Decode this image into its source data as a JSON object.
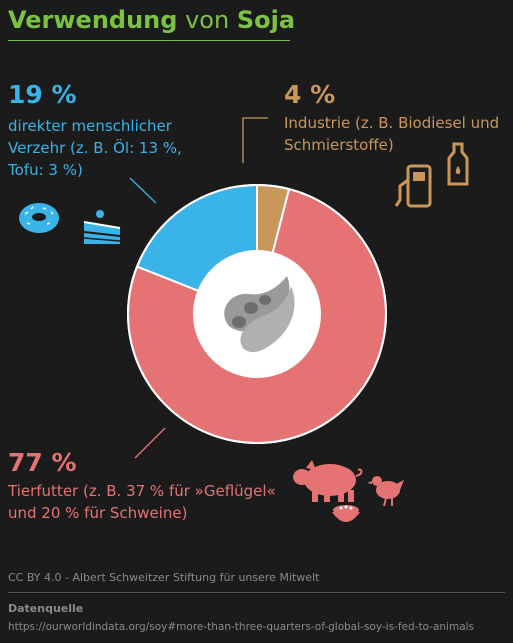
{
  "title": {
    "part1": "Verwendung",
    "part2": " von ",
    "part3": "Soja"
  },
  "colors": {
    "title_green": "#7cc242",
    "title_white": "#ffffff",
    "human": "#39b3e8",
    "industry": "#c9975a",
    "feed": "#e57373",
    "hole": "#ffffff",
    "bean": "#9a9a9a"
  },
  "chart_data": {
    "type": "pie",
    "donut": true,
    "slices": [
      {
        "name": "Industrie",
        "value": 4,
        "color": "#c9975a"
      },
      {
        "name": "Tierfutter",
        "value": 77,
        "color": "#e57373"
      },
      {
        "name": "direkter menschlicher Verzehr",
        "value": 19,
        "color": "#39b3e8"
      }
    ],
    "annotations": {
      "human": {
        "pct": "19 %",
        "lines": [
          "direkter menschlicher",
          "Verzehr (z. B. Öl: 13 %,",
          "Tofu: 3 %)"
        ]
      },
      "industry": {
        "pct": "4 %",
        "lines": [
          "Industrie (z. B. Biodiesel und",
          "Schmierstoffe)"
        ]
      },
      "feed": {
        "pct": "77 %",
        "lines": [
          "Tierfutter (z. B. 37 % für »Geflügel«",
          "und 20 % für Schweine)"
        ]
      }
    }
  },
  "icons": {
    "human": [
      "donut-icon",
      "cake-icon"
    ],
    "industry": [
      "fuel-pump-icon",
      "oil-bottle-icon"
    ],
    "feed": [
      "pig-icon",
      "chicken-icon",
      "feed-bowl-icon"
    ],
    "center": "soybean-pod-icon"
  },
  "footer": {
    "license": "CC BY 4.0 -  Albert Schweitzer Stiftung für unsere Mitwelt",
    "source_heading": "Datenquelle",
    "source_url": "https://ourworldindata.org/soy#more-than-three-quarters-of-global-soy-is-fed-to-animals"
  }
}
